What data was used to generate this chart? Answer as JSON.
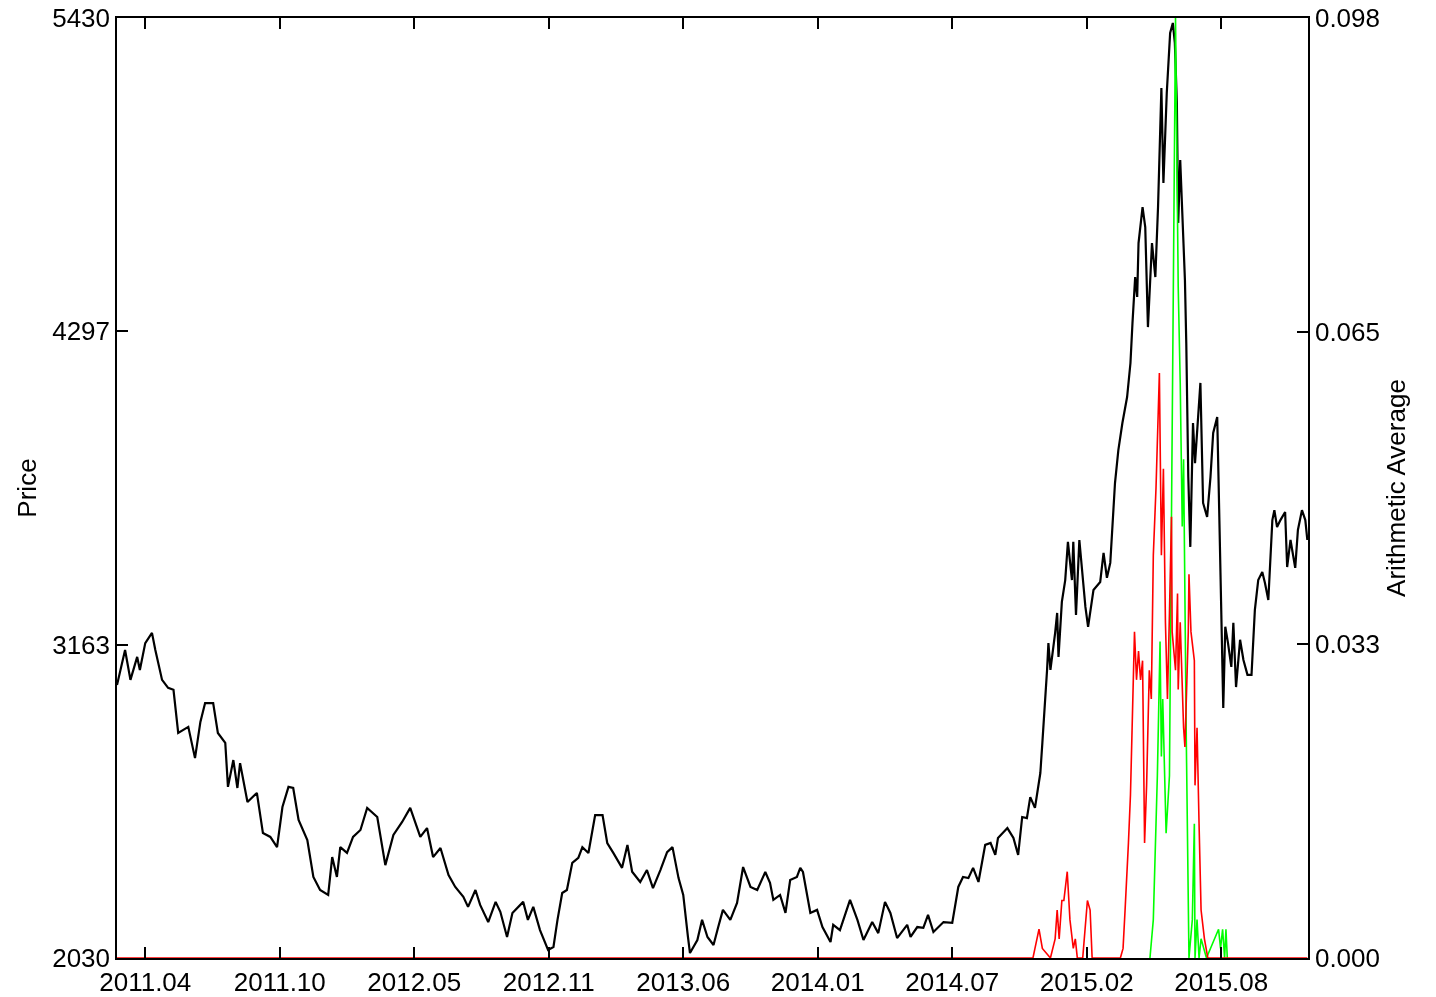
{
  "chart_data": {
    "type": "line",
    "ylabel": "Price",
    "y2label": "Arithmetic Average",
    "xlim": [
      "2011-02-25",
      "2016-01-01"
    ],
    "xticks": [
      {
        "value": "2011-04-08",
        "label": "2011.04"
      },
      {
        "value": "2011-10-25",
        "label": "2011.10"
      },
      {
        "value": "2012-05-12",
        "label": "2012.05"
      },
      {
        "value": "2012-11-28",
        "label": "2012.11"
      },
      {
        "value": "2013-06-16",
        "label": "2013.06"
      },
      {
        "value": "2014-01-02",
        "label": "2014.01"
      },
      {
        "value": "2014-07-21",
        "label": "2014.07"
      },
      {
        "value": "2015-02-06",
        "label": "2015.02"
      },
      {
        "value": "2015-08-25",
        "label": "2015.08"
      }
    ],
    "ylim": [
      2030,
      5430
    ],
    "yticks": [
      2030,
      3163,
      4297,
      5430
    ],
    "y2lim": [
      0,
      0.098
    ],
    "y2ticks": [
      {
        "value": 0,
        "label": "0.000"
      },
      {
        "value": 0.0327,
        "label": "0.033"
      },
      {
        "value": 0.0653,
        "label": "0.065"
      },
      0.098
    ],
    "grid": false,
    "series": [
      {
        "color": "#000000",
        "x": [
          "2011-02-25",
          "2011-03-09",
          "2011-03-17",
          "2011-03-27",
          "2011-03-31",
          "2011-04-08",
          "2011-04-18",
          "2011-04-23",
          "2011-05-03",
          "2011-05-12",
          "2011-05-20",
          "2011-05-27",
          "2011-06-11",
          "2011-06-21",
          "2011-06-29",
          "2011-07-06",
          "2011-07-18",
          "2011-07-25",
          "2011-08-05",
          "2011-08-09",
          "2011-08-17",
          "2011-08-23",
          "2011-08-27",
          "2011-09-07",
          "2011-09-21",
          "2011-09-30",
          "2011-10-11",
          "2011-10-21",
          "2011-10-29",
          "2011-11-07",
          "2011-11-14",
          "2011-11-22",
          "2011-12-05",
          "2011-12-14",
          "2011-12-24",
          "2012-01-05",
          "2012-01-11",
          "2012-01-18",
          "2012-01-23",
          "2012-02-02",
          "2012-02-11",
          "2012-02-22",
          "2012-03-03",
          "2012-03-18",
          "2012-03-30",
          "2012-04-11",
          "2012-04-24",
          "2012-05-06",
          "2012-05-21",
          "2012-05-31",
          "2012-06-09",
          "2012-06-20",
          "2012-07-02",
          "2012-07-12",
          "2012-07-24",
          "2012-07-31",
          "2012-08-11",
          "2012-08-18",
          "2012-08-30",
          "2012-09-10",
          "2012-09-17",
          "2012-09-27",
          "2012-10-05",
          "2012-10-21",
          "2012-10-28",
          "2012-11-05",
          "2012-11-15",
          "2012-11-27",
          "2012-12-05",
          "2012-12-11",
          "2012-12-18",
          "2012-12-25",
          "2013-01-02",
          "2013-01-11",
          "2013-01-17",
          "2013-01-26",
          "2013-02-05",
          "2013-02-16",
          "2013-02-23",
          "2013-03-04",
          "2013-03-17",
          "2013-03-25",
          "2013-04-01",
          "2013-04-13",
          "2013-04-23",
          "2013-05-02",
          "2013-05-13",
          "2013-05-23",
          "2013-05-31",
          "2013-06-09",
          "2013-06-16",
          "2013-06-23",
          "2013-06-26",
          "2013-07-07",
          "2013-07-14",
          "2013-07-22",
          "2013-07-31",
          "2013-08-07",
          "2013-08-14",
          "2013-08-25",
          "2013-09-04",
          "2013-09-13",
          "2013-09-24",
          "2013-10-04",
          "2013-10-16",
          "2013-10-23",
          "2013-10-28",
          "2013-11-07",
          "2013-11-15",
          "2013-11-22",
          "2013-12-02",
          "2013-12-07",
          "2013-12-11",
          "2013-12-22",
          "2014-01-01",
          "2014-01-09",
          "2014-01-21",
          "2014-01-25",
          "2014-02-04",
          "2014-02-19",
          "2014-03-02",
          "2014-03-11",
          "2014-03-24",
          "2014-04-02",
          "2014-04-12",
          "2014-04-20",
          "2014-04-30",
          "2014-05-15",
          "2014-05-20",
          "2014-05-30",
          "2014-06-08",
          "2014-06-15",
          "2014-06-23",
          "2014-07-08",
          "2014-07-21",
          "2014-07-30",
          "2014-08-06",
          "2014-08-14",
          "2014-08-21",
          "2014-08-29",
          "2014-09-08",
          "2014-09-16",
          "2014-09-23",
          "2014-09-27",
          "2014-10-11",
          "2014-10-20",
          "2014-10-27",
          "2014-11-02",
          "2014-11-09",
          "2014-11-14",
          "2014-11-21",
          "2014-11-29",
          "2014-12-02",
          "2014-12-09",
          "2014-12-11",
          "2014-12-14",
          "2014-12-21",
          "2014-12-24",
          "2014-12-26",
          "2014-12-31",
          "2015-01-05",
          "2015-01-09",
          "2015-01-15",
          "2015-01-17",
          "2015-01-21",
          "2015-01-26",
          "2015-02-04",
          "2015-02-08",
          "2015-02-16",
          "2015-02-26",
          "2015-03-03",
          "2015-03-08",
          "2015-03-13",
          "2015-03-20",
          "2015-03-25",
          "2015-03-31",
          "2015-04-07",
          "2015-04-12",
          "2015-04-15",
          "2015-04-19",
          "2015-04-22",
          "2015-04-24",
          "2015-04-30",
          "2015-05-04",
          "2015-05-08",
          "2015-05-14",
          "2015-05-19",
          "2015-05-23",
          "2015-05-28",
          "2015-05-31",
          "2015-06-05",
          "2015-06-10",
          "2015-06-14",
          "2015-06-17",
          "2015-06-20",
          "2015-06-22",
          "2015-06-25",
          "2015-07-02",
          "2015-07-04",
          "2015-07-07",
          "2015-07-10",
          "2015-07-14",
          "2015-07-17",
          "2015-07-25",
          "2015-07-29",
          "2015-08-04",
          "2015-08-09",
          "2015-08-13",
          "2015-08-19",
          "2015-08-21",
          "2015-08-28",
          "2015-08-31",
          "2015-09-04",
          "2015-09-09",
          "2015-09-12",
          "2015-09-16",
          "2015-09-22",
          "2015-09-27",
          "2015-10-03",
          "2015-10-09",
          "2015-10-14",
          "2015-10-19",
          "2015-10-25",
          "2015-10-29",
          "2015-11-03",
          "2015-11-09",
          "2015-11-12",
          "2015-11-16",
          "2015-11-21",
          "2015-11-28",
          "2015-12-01",
          "2015-12-06",
          "2015-12-13",
          "2015-12-17",
          "2015-12-23",
          "2015-12-28",
          "2015-12-31"
        ],
        "values": [
          3017,
          3144,
          3036,
          3119,
          3072,
          3169,
          3206,
          3144,
          3036,
          3007,
          3000,
          2844,
          2866,
          2753,
          2884,
          2952,
          2952,
          2844,
          2808,
          2649,
          2746,
          2645,
          2735,
          2594,
          2627,
          2482,
          2468,
          2431,
          2576,
          2649,
          2645,
          2529,
          2457,
          2323,
          2276,
          2258,
          2395,
          2323,
          2431,
          2410,
          2468,
          2493,
          2573,
          2540,
          2366,
          2475,
          2522,
          2573,
          2468,
          2500,
          2395,
          2428,
          2330,
          2287,
          2251,
          2215,
          2276,
          2222,
          2160,
          2233,
          2197,
          2106,
          2193,
          2233,
          2168,
          2215,
          2131,
          2059,
          2070,
          2168,
          2265,
          2276,
          2374,
          2392,
          2431,
          2410,
          2547,
          2547,
          2446,
          2410,
          2356,
          2439,
          2342,
          2305,
          2348,
          2283,
          2348,
          2413,
          2431,
          2319,
          2258,
          2106,
          2048,
          2095,
          2168,
          2106,
          2077,
          2142,
          2204,
          2168,
          2229,
          2359,
          2287,
          2276,
          2341,
          2302,
          2240,
          2258,
          2193,
          2312,
          2323,
          2356,
          2341,
          2193,
          2204,
          2142,
          2088,
          2150,
          2131,
          2240,
          2168,
          2095,
          2160,
          2120,
          2233,
          2193,
          2102,
          2150,
          2106,
          2142,
          2139,
          2186,
          2124,
          2160,
          2157,
          2287,
          2323,
          2319,
          2356,
          2305,
          2439,
          2446,
          2403,
          2464,
          2500,
          2464,
          2403,
          2540,
          2536,
          2612,
          2573,
          2699,
          2808,
          3072,
          3169,
          3072,
          3206,
          3278,
          3119,
          3318,
          3397,
          3535,
          3397,
          3535,
          3271,
          3542,
          3300,
          3228,
          3361,
          3390,
          3495,
          3405,
          3459,
          3748,
          3867,
          3965,
          4059,
          4182,
          4327,
          4493,
          4421,
          4616,
          4746,
          4674,
          4312,
          4616,
          4493,
          4746,
          5177,
          4833,
          5159,
          5376,
          5412,
          5340,
          5123,
          4689,
          4916,
          4482,
          4254,
          3770,
          3517,
          3965,
          3820,
          4110,
          3676,
          3625,
          3770,
          3929,
          3987,
          3759,
          2934,
          3228,
          3170,
          3083,
          3242,
          3010,
          3181,
          3108,
          3054,
          3054,
          3289,
          3397,
          3426,
          3386,
          3325,
          3614,
          3650,
          3589,
          3614,
          3643,
          3444,
          3542,
          3441,
          3578,
          3650,
          3614,
          3542
        ]
      },
      {
        "color": "#00ff00",
        "axis": "y2",
        "x": [
          "2015-05-11",
          "2015-05-16",
          "2015-05-22",
          "2015-05-26",
          "2015-05-28",
          "2015-05-30",
          "2015-06-04",
          "2015-06-09",
          "2015-06-12",
          "2015-06-18",
          "2015-06-22",
          "2015-06-25",
          "2015-06-28",
          "2015-06-30",
          "2015-07-04",
          "2015-07-08",
          "2015-07-13",
          "2015-07-16",
          "2015-07-17",
          "2015-07-20",
          "2015-07-23",
          "2015-07-26",
          "2015-08-03",
          "2015-08-21",
          "2015-08-24",
          "2015-08-27",
          "2015-08-30",
          "2015-09-01",
          "2015-09-03"
        ],
        "values": [
          0,
          0.004,
          0.019,
          0.033,
          0.021,
          0.027,
          0.013,
          0.019,
          0.046,
          0.098,
          0.07,
          0.06,
          0.045,
          0.052,
          0.023,
          0,
          0.004,
          0.014,
          0,
          0.004,
          0,
          0.002,
          0,
          0.003,
          0.001,
          0.003,
          0,
          0.003,
          0
        ]
      },
      {
        "color": "#ff0000",
        "axis": "y2",
        "x": [
          "2011-02-25",
          "2014-11-18",
          "2014-11-21",
          "2014-11-27",
          "2014-12-02",
          "2014-12-14",
          "2014-12-21",
          "2014-12-24",
          "2014-12-27",
          "2014-12-31",
          "2015-01-03",
          "2015-01-08",
          "2015-01-12",
          "2015-01-17",
          "2015-01-20",
          "2015-01-23",
          "2015-01-31",
          "2015-02-07",
          "2015-02-11",
          "2015-02-14",
          "2015-03-28",
          "2015-04-01",
          "2015-04-04",
          "2015-04-09",
          "2015-04-12",
          "2015-04-18",
          "2015-04-21",
          "2015-04-24",
          "2015-04-27",
          "2015-04-30",
          "2015-05-03",
          "2015-05-06",
          "2015-05-10",
          "2015-05-13",
          "2015-05-16",
          "2015-05-20",
          "2015-05-25",
          "2015-05-28",
          "2015-05-31",
          "2015-06-03",
          "2015-06-06",
          "2015-06-09",
          "2015-06-12",
          "2015-06-13",
          "2015-06-18",
          "2015-06-21",
          "2015-06-22",
          "2015-06-25",
          "2015-06-30",
          "2015-07-02",
          "2015-07-07",
          "2015-07-08",
          "2015-07-11",
          "2015-07-16",
          "2015-07-17",
          "2015-07-20",
          "2015-07-23",
          "2015-07-26",
          "2015-07-31",
          "2015-08-05",
          "2015-12-31"
        ],
        "values": [
          0,
          0,
          0.001,
          0.003,
          0.001,
          0,
          0.002,
          0.005,
          0.002,
          0.006,
          0.006,
          0.009,
          0.004,
          0.001,
          0.002,
          0,
          0,
          0.006,
          0.005,
          0,
          0,
          0.001,
          0.005,
          0.012,
          0.017,
          0.034,
          0.029,
          0.032,
          0.029,
          0.031,
          0.012,
          0.018,
          0.03,
          0.027,
          0.042,
          0.049,
          0.061,
          0.042,
          0.051,
          0.035,
          0.027,
          0.036,
          0.046,
          0.034,
          0.03,
          0.038,
          0.028,
          0.035,
          0.024,
          0.022,
          0.034,
          0.04,
          0.034,
          0.031,
          0.018,
          0.024,
          0.014,
          0.005,
          0.002,
          0,
          0
        ]
      }
    ]
  }
}
